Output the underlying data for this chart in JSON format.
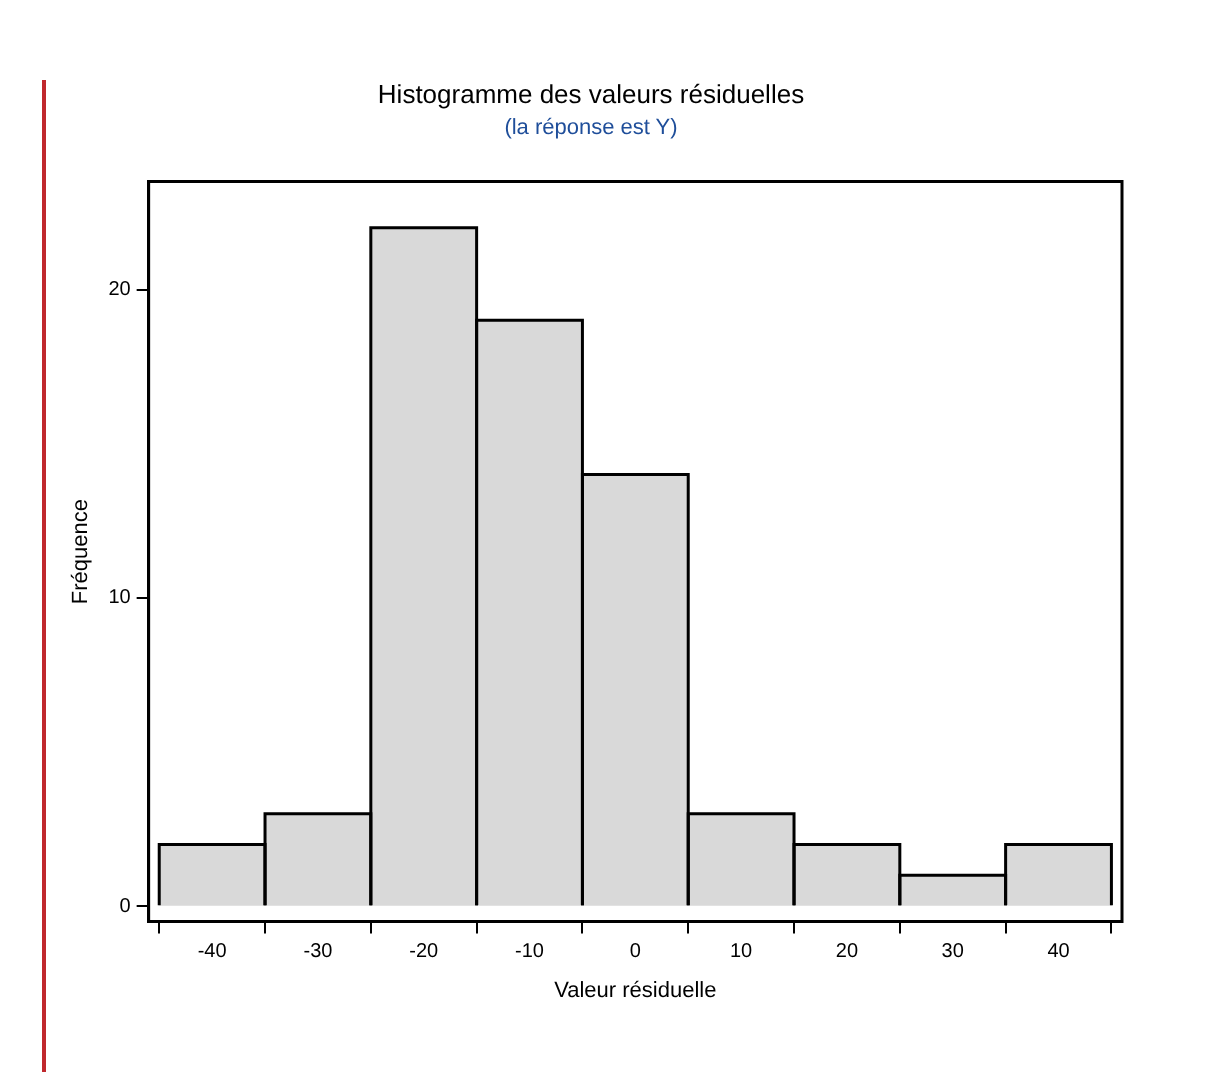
{
  "chart_data": {
    "type": "histogram",
    "title": "Histogramme des valeurs résiduelles",
    "subtitle": "(la réponse est Y)",
    "xlabel": "Valeur résiduelle",
    "ylabel": "Fréquence",
    "bins": [
      -45,
      -35,
      -25,
      -15,
      -5,
      5,
      15,
      25,
      35,
      45
    ],
    "values": [
      2,
      3,
      22,
      19,
      14,
      3,
      2,
      1,
      2
    ],
    "color": "#d9d9d9",
    "xlim": [
      -46,
      46
    ],
    "xticks": [
      -40,
      -30,
      -20,
      -10,
      0,
      10,
      20,
      30,
      40
    ],
    "ylim": [
      -0.5,
      23.5
    ],
    "yticks": [
      0,
      10,
      20
    ],
    "grid": false,
    "legend": false
  }
}
